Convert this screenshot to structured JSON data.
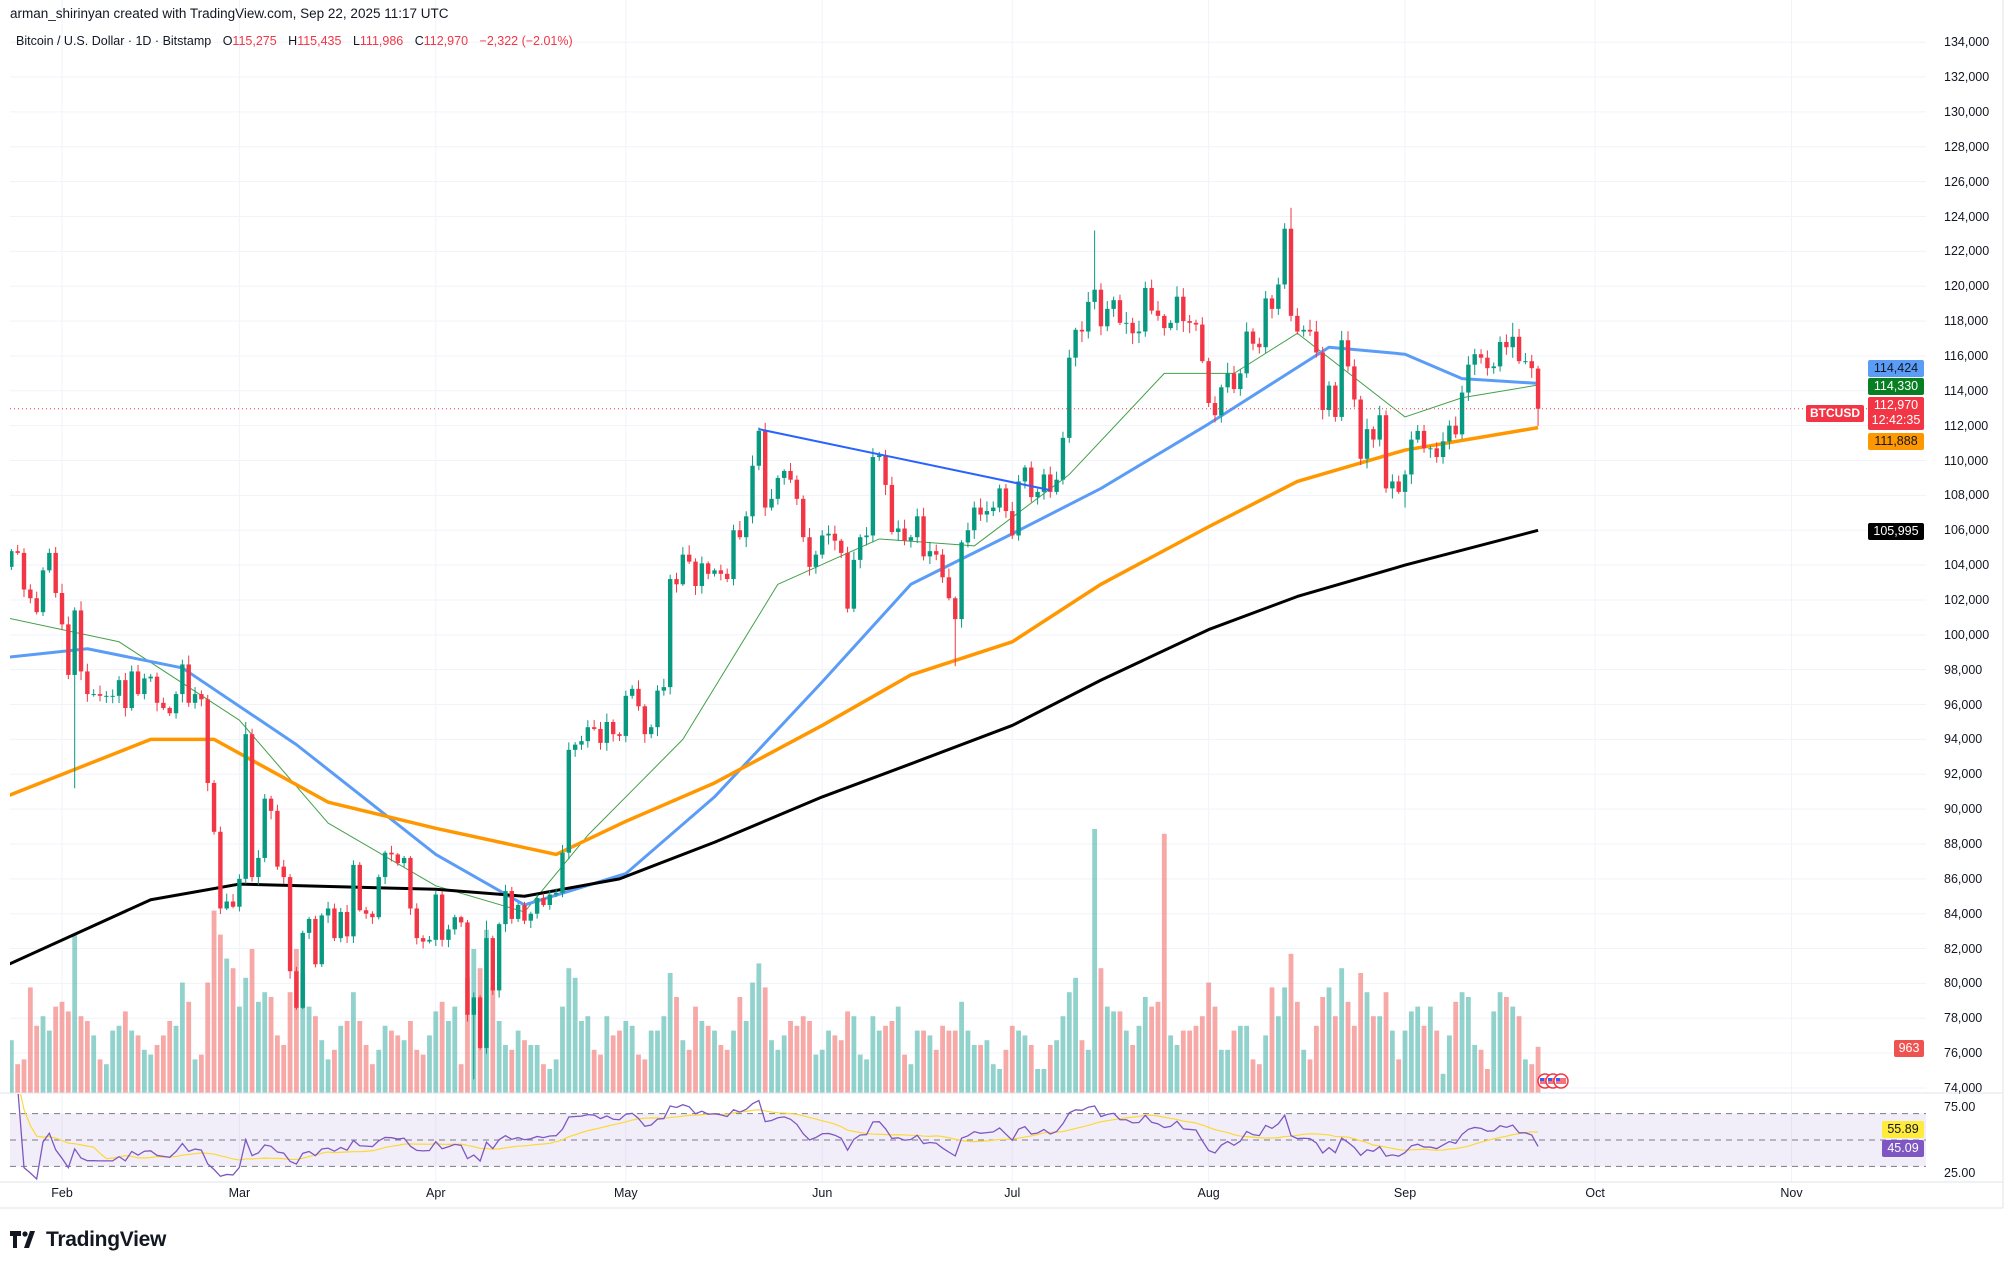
{
  "header": {
    "attribution": "arman_shirinyan created with TradingView.com, Sep 22, 2025 11:17 UTC"
  },
  "legend": {
    "symbol": "Bitcoin / U.S. Dollar · 1D · Bitstamp",
    "open_label": "O",
    "open": "115,275",
    "high_label": "H",
    "high": "115,435",
    "low_label": "L",
    "low": "111,986",
    "close_label": "C",
    "close": "112,970",
    "change": "−2,322 (−2.01%)"
  },
  "badges": {
    "ma50": "114,424",
    "ma20": "114,330",
    "symbol_tag": "BTCUSD",
    "last_price": "112,970",
    "countdown": "12:42:35",
    "ma100": "111,888",
    "ma200": "105,995",
    "volume": "963",
    "rsi_ma": "55.89",
    "rsi": "45.09"
  },
  "colors": {
    "up": "#089981",
    "down": "#f23645",
    "vol_up": "#26a69a",
    "vol_down": "#ef5350",
    "ma20": "#43a047",
    "ma50": "#5b9cf6",
    "ma100": "#ff9800",
    "ma200": "#000000",
    "trendline": "#2962ff",
    "rsi": "#7e57c2",
    "rsi_ma": "#fdd835"
  },
  "brand": "TradingView",
  "chart_data": {
    "type": "candlestick",
    "title": "Bitcoin / U.S. Dollar · 1D · Bitstamp",
    "start_date": "2025-01-23",
    "ylim": [
      74000,
      134000
    ],
    "price_ticks": [
      "74,000",
      "76,000",
      "78,000",
      "80,000",
      "82,000",
      "84,000",
      "86,000",
      "88,000",
      "90,000",
      "92,000",
      "94,000",
      "96,000",
      "98,000",
      "100,000",
      "102,000",
      "104,000",
      "106,000",
      "108,000",
      "110,000",
      "112,000",
      "114,000",
      "116,000",
      "118,000",
      "120,000",
      "122,000",
      "124,000",
      "126,000",
      "128,000",
      "130,000",
      "132,000",
      "134,000"
    ],
    "month_ticks": [
      {
        "label": "Feb",
        "date": "2025-02-01"
      },
      {
        "label": "Mar",
        "date": "2025-03-01"
      },
      {
        "label": "Apr",
        "date": "2025-04-01"
      },
      {
        "label": "May",
        "date": "2025-05-01"
      },
      {
        "label": "Jun",
        "date": "2025-06-01"
      },
      {
        "label": "Jul",
        "date": "2025-07-01"
      },
      {
        "label": "Aug",
        "date": "2025-08-01"
      },
      {
        "label": "Sep",
        "date": "2025-09-01"
      },
      {
        "label": "Oct",
        "date": "2025-10-01"
      },
      {
        "label": "Nov",
        "date": "2025-11-01"
      }
    ],
    "closes": [
      103900,
      104800,
      104700,
      102600,
      102100,
      101300,
      103700,
      104700,
      102400,
      100600,
      97700,
      101400,
      97900,
      96600,
      96600,
      96500,
      96500,
      96500,
      97400,
      95800,
      97900,
      96600,
      97500,
      97600,
      96100,
      95800,
      95500,
      96600,
      98300,
      96100,
      96600,
      96300,
      91500,
      88700,
      84300,
      84700,
      84400,
      86000,
      94300,
      86100,
      87200,
      90600,
      89900,
      86700,
      86100,
      80700,
      78600,
      82900,
      83700,
      81100,
      83900,
      84300,
      82600,
      84100,
      82700,
      86800,
      84200,
      84000,
      83800,
      86100,
      87500,
      87400,
      86900,
      87200,
      84300,
      82600,
      82400,
      82500,
      85100,
      82500,
      83100,
      83800,
      83500,
      78200,
      79200,
      76300,
      82600,
      79600,
      83400,
      85300,
      83700,
      84500,
      83600,
      84000,
      84900,
      84500,
      85100,
      85200,
      87500,
      93400,
      93700,
      93900,
      94700,
      94600,
      93800,
      95000,
      94300,
      94200,
      96500,
      96900,
      95900,
      94300,
      94700,
      96800,
      97000,
      103200,
      102900,
      104600,
      104200,
      102800,
      104100,
      103500,
      103700,
      103500,
      103200,
      106000,
      105600,
      106800,
      109700,
      111700,
      107300,
      107800,
      109000,
      109400,
      108900,
      107800,
      105600,
      103900,
      104600,
      105700,
      105800,
      105400,
      104700,
      101500,
      104300,
      105600,
      105700,
      110200,
      110300,
      108600,
      105900,
      106100,
      105400,
      105600,
      106800,
      104500,
      104800,
      104600,
      103300,
      102100,
      100900,
      105300,
      106000,
      107300,
      106900,
      107100,
      107300,
      108400,
      107100,
      105700,
      108800,
      109600,
      107900,
      108200,
      109200,
      108200,
      108900,
      111300,
      115900,
      117500,
      117400,
      119100,
      119800,
      117700,
      118700,
      119200,
      117900,
      117900,
      117300,
      117400,
      119900,
      118600,
      118300,
      117600,
      117900,
      119400,
      118000,
      117900,
      117800,
      115700,
      113300,
      112600,
      114200,
      115000,
      114100,
      115000,
      117400,
      116700,
      116500,
      119300,
      118700,
      120100,
      123300,
      118300,
      117400,
      117500,
      117400,
      116200,
      112900,
      114300,
      112500,
      116900,
      115400,
      113500,
      110100,
      111800,
      111200,
      112600,
      108400,
      108800,
      108200,
      109200,
      111200,
      111700,
      110700,
      110700,
      110200,
      111100,
      112000,
      111500,
      113900,
      115500,
      116100,
      115900,
      115300,
      115400,
      116800,
      116500,
      117100,
      115700,
      115700,
      115300,
      112970
    ],
    "last_candle": {
      "open": 115275,
      "high": 115435,
      "low": 111986,
      "close": 112970
    },
    "extremes": [
      {
        "date": "2025-01-23",
        "high": 106800
      },
      {
        "date": "2025-02-03",
        "low": 91200
      },
      {
        "date": "2025-03-02",
        "high": 95000
      },
      {
        "date": "2025-04-07",
        "low": 74500
      },
      {
        "date": "2025-04-09",
        "high": 83600
      },
      {
        "date": "2025-05-22",
        "high": 111900
      },
      {
        "date": "2025-06-22",
        "low": 98200
      },
      {
        "date": "2025-07-14",
        "high": 123200
      },
      {
        "date": "2025-08-14",
        "high": 124500
      },
      {
        "date": "2025-09-01",
        "low": 107300
      },
      {
        "date": "2025-09-18",
        "high": 117900
      }
    ],
    "volumes": [
      1500,
      1100,
      600,
      700,
      2200,
      1400,
      1600,
      1300,
      1800,
      1900,
      1700,
      3300,
      1600,
      1500,
      1200,
      700,
      600,
      1300,
      1400,
      1700,
      1300,
      1200,
      900,
      800,
      1000,
      1200,
      1500,
      1400,
      2300,
      1900,
      700,
      800,
      2300,
      3800,
      3300,
      2800,
      2600,
      1800,
      2400,
      3000,
      1900,
      2100,
      2000,
      1200,
      1000,
      2100,
      3000,
      2500,
      1800,
      1600,
      1100,
      700,
      900,
      1400,
      1500,
      2100,
      1500,
      1000,
      600,
      900,
      1400,
      1300,
      1200,
      1100,
      1500,
      900,
      800,
      1200,
      1700,
      1900,
      1500,
      1800,
      600,
      2400,
      3000,
      2600,
      3400,
      2200,
      1500,
      1000,
      900,
      1300,
      1100,
      1000,
      1000,
      600,
      500,
      700,
      1800,
      2600,
      2400,
      1500,
      1600,
      900,
      800,
      1600,
      1200,
      1300,
      1500,
      1400,
      800,
      700,
      1300,
      1300,
      1600,
      2500,
      2000,
      1100,
      900,
      1800,
      1500,
      1400,
      1300,
      1000,
      900,
      1300,
      2000,
      1500,
      2300,
      2700,
      2200,
      1100,
      900,
      1200,
      1500,
      1400,
      1600,
      1500,
      800,
      900,
      1300,
      1200,
      1100,
      1700,
      1600,
      800,
      700,
      1600,
      1300,
      1400,
      1500,
      1800,
      800,
      600,
      1300,
      1300,
      1200,
      900,
      1400,
      1300,
      1300,
      1900,
      1300,
      1000,
      1000,
      1100,
      600,
      500,
      900,
      1400,
      1300,
      1200,
      1000,
      500,
      500,
      1000,
      1100,
      1600,
      2100,
      2400,
      1100,
      900,
      5500,
      2600,
      1800,
      1700,
      1700,
      1300,
      1000,
      1400,
      2000,
      1800,
      1900,
      5400,
      1200,
      1000,
      1300,
      1300,
      1400,
      1600,
      2300,
      1800,
      900,
      900,
      1300,
      1400,
      1400,
      700,
      600,
      1200,
      2200,
      1600,
      2200,
      2900,
      1900,
      900,
      700,
      1400,
      2000,
      2200,
      1600,
      2600,
      1900,
      1400,
      2500,
      2100,
      1600,
      1600,
      2100,
      1300,
      700,
      1300,
      1700,
      1800,
      1400,
      1800,
      1300,
      400,
      1200,
      1900,
      2100,
      2000,
      1000,
      900,
      500,
      1700,
      2100,
      2000,
      1800,
      1600,
      700,
      600,
      963
    ],
    "moving_averages": [
      {
        "name": "MA20",
        "last": 114330,
        "points": [
          [
            "2025-01-23",
            101000
          ],
          [
            "2025-02-10",
            99600
          ],
          [
            "2025-03-01",
            95100
          ],
          [
            "2025-03-15",
            89200
          ],
          [
            "2025-04-01",
            85600
          ],
          [
            "2025-04-15",
            84100
          ],
          [
            "2025-04-25",
            88500
          ],
          [
            "2025-05-10",
            94000
          ],
          [
            "2025-05-25",
            102900
          ],
          [
            "2025-06-10",
            105500
          ],
          [
            "2025-06-25",
            105100
          ],
          [
            "2025-07-10",
            109200
          ],
          [
            "2025-07-25",
            115000
          ],
          [
            "2025-08-05",
            115000
          ],
          [
            "2025-08-15",
            117300
          ],
          [
            "2025-09-01",
            112500
          ],
          [
            "2025-09-10",
            113600
          ],
          [
            "2025-09-22",
            114330
          ]
        ]
      },
      {
        "name": "MA50",
        "last": 114424,
        "points": [
          [
            "2025-01-23",
            98700
          ],
          [
            "2025-02-05",
            99200
          ],
          [
            "2025-02-20",
            98100
          ],
          [
            "2025-03-10",
            93700
          ],
          [
            "2025-04-01",
            87400
          ],
          [
            "2025-04-15",
            84500
          ],
          [
            "2025-05-01",
            86300
          ],
          [
            "2025-05-15",
            90700
          ],
          [
            "2025-06-01",
            97300
          ],
          [
            "2025-06-15",
            102900
          ],
          [
            "2025-07-01",
            105800
          ],
          [
            "2025-07-15",
            108400
          ],
          [
            "2025-08-01",
            112100
          ],
          [
            "2025-08-20",
            116500
          ],
          [
            "2025-09-01",
            116100
          ],
          [
            "2025-09-10",
            114700
          ],
          [
            "2025-09-22",
            114424
          ]
        ]
      },
      {
        "name": "MA100",
        "last": 111888,
        "points": [
          [
            "2025-01-23",
            90700
          ],
          [
            "2025-02-15",
            94000
          ],
          [
            "2025-02-25",
            94000
          ],
          [
            "2025-03-15",
            90400
          ],
          [
            "2025-04-01",
            88900
          ],
          [
            "2025-04-20",
            87400
          ],
          [
            "2025-05-01",
            89300
          ],
          [
            "2025-05-15",
            91500
          ],
          [
            "2025-06-01",
            94800
          ],
          [
            "2025-06-15",
            97700
          ],
          [
            "2025-07-01",
            99600
          ],
          [
            "2025-07-15",
            102900
          ],
          [
            "2025-08-01",
            106200
          ],
          [
            "2025-08-15",
            108800
          ],
          [
            "2025-09-01",
            110600
          ],
          [
            "2025-09-22",
            111888
          ]
        ]
      },
      {
        "name": "MA200",
        "last": 105995,
        "points": [
          [
            "2025-01-23",
            81000
          ],
          [
            "2025-02-15",
            84800
          ],
          [
            "2025-03-01",
            85700
          ],
          [
            "2025-04-01",
            85400
          ],
          [
            "2025-04-15",
            85000
          ],
          [
            "2025-04-30",
            86000
          ],
          [
            "2025-05-15",
            88100
          ],
          [
            "2025-06-01",
            90700
          ],
          [
            "2025-06-15",
            92600
          ],
          [
            "2025-07-01",
            94800
          ],
          [
            "2025-07-15",
            97400
          ],
          [
            "2025-08-01",
            100300
          ],
          [
            "2025-08-15",
            102200
          ],
          [
            "2025-09-01",
            104000
          ],
          [
            "2025-09-22",
            105995
          ]
        ]
      }
    ],
    "trendline": [
      [
        "2025-05-22",
        111800
      ],
      [
        "2025-07-07",
        108300
      ]
    ],
    "rsi": {
      "period": 14,
      "ma_period": 14,
      "levels": [
        70,
        50,
        30
      ],
      "ticks": [
        "75.00",
        "25.00"
      ],
      "last": 45.09,
      "ma_last": 55.89
    }
  }
}
